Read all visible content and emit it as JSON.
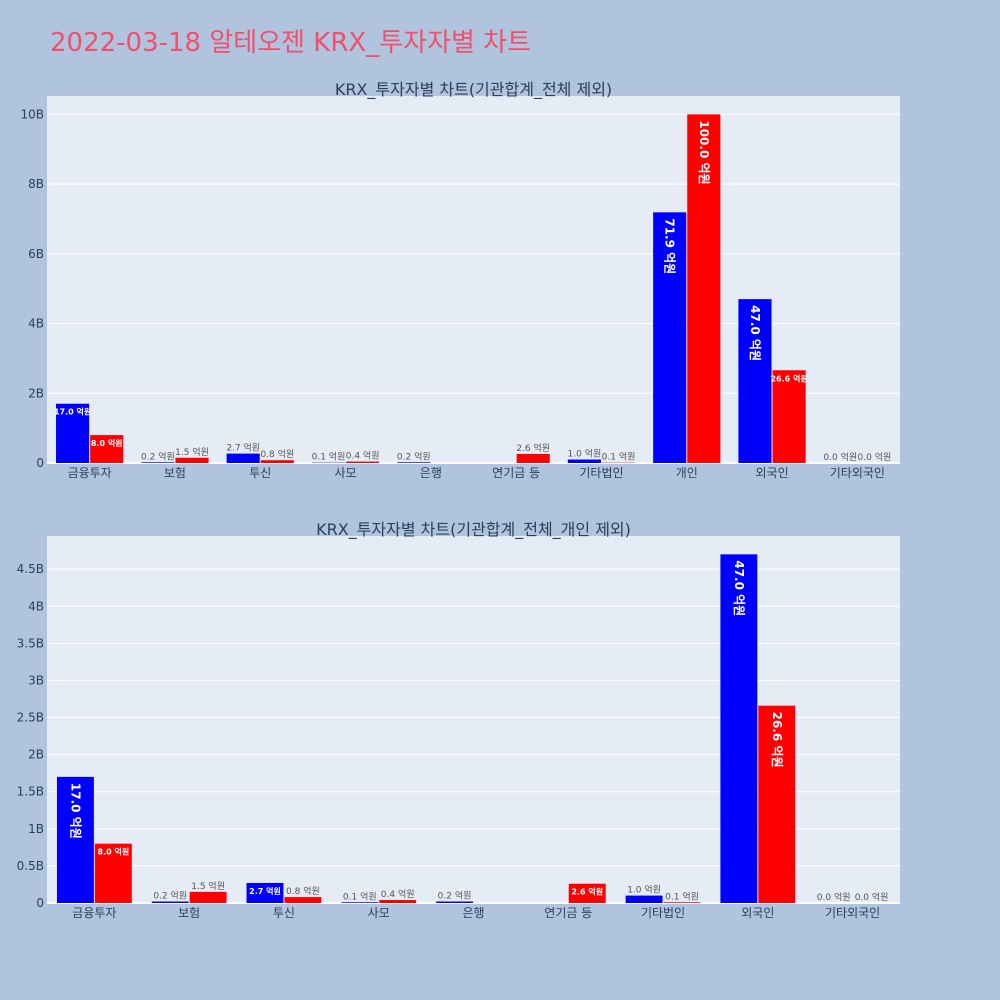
{
  "page": {
    "title": "2022-03-18 알테오젠 KRX_투자자별 차트"
  },
  "colors": {
    "buy": "#0000ff",
    "sell": "#ff0000",
    "plot_bg": "#e5ecf6",
    "page_bg": "#b0c4de",
    "title": "#f0506e"
  },
  "chart_data": [
    {
      "type": "bar",
      "title": "KRX_투자자별 차트(기관합계_전체 제외)",
      "categories": [
        "금융투자",
        "보험",
        "투신",
        "사모",
        "은행",
        "연기금 등",
        "기타법인",
        "개인",
        "외국인",
        "기타외국인"
      ],
      "series": [
        {
          "values": [
            1700000000,
            20000000,
            270000000,
            10000000,
            20000000,
            0,
            100000000,
            7190000000,
            4700000000,
            0
          ],
          "labels": [
            "17.0 억원",
            "0.2 억원",
            "2.7 억원",
            "0.1 억원",
            "0.2 억원",
            "",
            "1.0 억원",
            "71.9 억원",
            "47.0 억원",
            "0.0 억원"
          ]
        },
        {
          "values": [
            800000000,
            150000000,
            80000000,
            40000000,
            0,
            260000000,
            10000000,
            10000000000,
            2660000000,
            0
          ],
          "labels": [
            "8.0 억원",
            "1.5 억원",
            "0.8 억원",
            "0.4 억원",
            "",
            "2.6 억원",
            "0.1 억원",
            "100.0 억원",
            "26.6 억원",
            "0.0 억원"
          ]
        }
      ],
      "ylim": [
        0,
        10526315789
      ],
      "yticks": [
        0,
        2000000000,
        4000000000,
        6000000000,
        8000000000,
        10000000000
      ],
      "ytick_labels": [
        "0",
        "2B",
        "4B",
        "6B",
        "8B",
        "10B"
      ],
      "grid": true
    },
    {
      "type": "bar",
      "title": "KRX_투자자별 차트(기관합계_전체_개인 제외)",
      "categories": [
        "금융투자",
        "보험",
        "투신",
        "사모",
        "은행",
        "연기금 등",
        "기타법인",
        "외국인",
        "기타외국인"
      ],
      "series": [
        {
          "values": [
            1700000000,
            20000000,
            270000000,
            10000000,
            20000000,
            0,
            100000000,
            4700000000,
            0
          ],
          "labels": [
            "17.0 억원",
            "0.2 억원",
            "2.7 억원",
            "0.1 억원",
            "0.2 억원",
            "",
            "1.0 억원",
            "47.0 억원",
            "0.0 억원"
          ]
        },
        {
          "values": [
            800000000,
            150000000,
            80000000,
            40000000,
            0,
            260000000,
            10000000,
            2660000000,
            0
          ],
          "labels": [
            "8.0 억원",
            "1.5 억원",
            "0.8 억원",
            "0.4 억원",
            "",
            "2.6 억원",
            "0.1 억원",
            "26.6 억원",
            "0.0 억원"
          ]
        }
      ],
      "ylim": [
        0,
        4947368421
      ],
      "yticks": [
        0,
        500000000,
        1000000000,
        1500000000,
        2000000000,
        2500000000,
        3000000000,
        3500000000,
        4000000000,
        4500000000
      ],
      "ytick_labels": [
        "0",
        "0.5B",
        "1B",
        "1.5B",
        "2B",
        "2.5B",
        "3B",
        "3.5B",
        "4B",
        "4.5B"
      ],
      "grid": true
    }
  ]
}
